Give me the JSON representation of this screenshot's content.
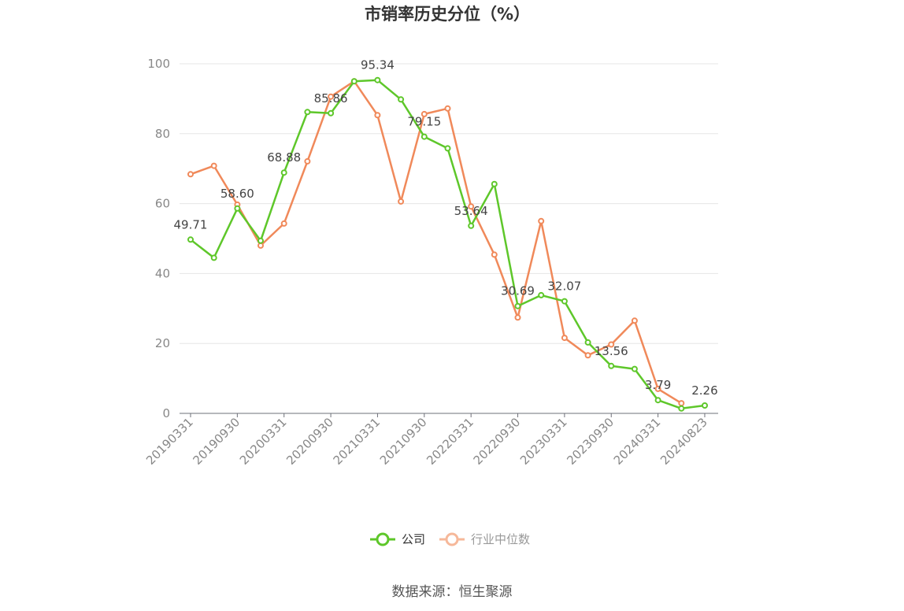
{
  "chart_data": {
    "type": "line",
    "title": "市销率历史分位（%）",
    "ylim": [
      0,
      100
    ],
    "yticks": [
      0,
      20,
      40,
      60,
      80,
      100
    ],
    "grid": true,
    "legend_position": "bottom-center",
    "x_tick_labels": [
      "20190331",
      "20190930",
      "20200331",
      "20200930",
      "20210331",
      "20210930",
      "20220331",
      "20220930",
      "20230331",
      "20230930",
      "20240331",
      "20240823"
    ],
    "x": [
      "20190331",
      "20190630",
      "20190930",
      "20191231",
      "20200331",
      "20200630",
      "20200930",
      "20201231",
      "20210331",
      "20210630",
      "20210930",
      "20211231",
      "20220331",
      "20220630",
      "20220930",
      "20221231",
      "20230331",
      "20230630",
      "20230930",
      "20231231",
      "20240331",
      "20240630",
      "20240823"
    ],
    "series": [
      {
        "name": "公司",
        "color": "#5ec72a",
        "values": [
          49.71,
          44.5,
          58.6,
          49.4,
          68.88,
          86.2,
          85.86,
          95.0,
          95.34,
          89.8,
          79.15,
          75.8,
          53.64,
          65.6,
          30.69,
          33.8,
          32.07,
          20.3,
          13.56,
          12.7,
          3.79,
          1.4,
          2.26
        ]
      },
      {
        "name": "行业中位数",
        "color": "#f0895a",
        "values": [
          68.4,
          70.8,
          59.7,
          48.0,
          54.3,
          72.1,
          90.6,
          95.0,
          85.3,
          60.6,
          85.6,
          87.2,
          59.2,
          45.4,
          27.4,
          55.0,
          21.6,
          16.6,
          19.7,
          26.5,
          7.0,
          2.9,
          null
        ]
      }
    ],
    "data_labels": [
      {
        "x": "20190331",
        "value": "49.71"
      },
      {
        "x": "20190930",
        "value": "58.60"
      },
      {
        "x": "20200331",
        "value": "68.88"
      },
      {
        "x": "20200930",
        "value": "85.86"
      },
      {
        "x": "20210331",
        "value": "95.34"
      },
      {
        "x": "20210930",
        "value": "79.15"
      },
      {
        "x": "20220331",
        "value": "53.64"
      },
      {
        "x": "20220930",
        "value": "30.69"
      },
      {
        "x": "20230331",
        "value": "32.07"
      },
      {
        "x": "20230930",
        "value": "13.56"
      },
      {
        "x": "20240331",
        "value": "3.79"
      },
      {
        "x": "20240823",
        "value": "2.26"
      }
    ]
  },
  "legend": {
    "items": [
      {
        "label": "公司",
        "color": "#5ec72a",
        "icon": "circle-line-icon"
      },
      {
        "label": "行业中位数",
        "color": "#f0895a",
        "icon": "circle-line-icon"
      }
    ]
  },
  "source": "数据来源：恒生聚源"
}
